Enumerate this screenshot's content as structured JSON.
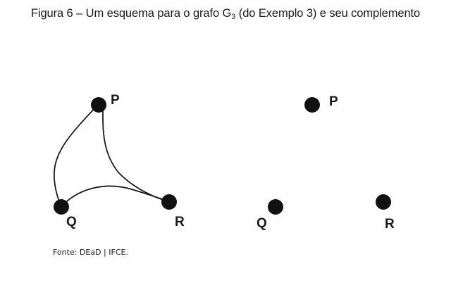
{
  "caption": {
    "prefix": "Figura 6 – Um esquema para o grafo G",
    "subscript": "3",
    "suffix": " (do Exemplo 3) e seu complemento"
  },
  "graph_g3": {
    "vertices": [
      {
        "id": "P",
        "label": "P"
      },
      {
        "id": "Q",
        "label": "Q"
      },
      {
        "id": "R",
        "label": "R"
      }
    ],
    "edges": [
      {
        "from": "P",
        "to": "Q"
      },
      {
        "from": "P",
        "to": "R"
      },
      {
        "from": "Q",
        "to": "R"
      }
    ]
  },
  "graph_complement": {
    "vertices": [
      {
        "id": "P",
        "label": "P"
      },
      {
        "id": "Q",
        "label": "Q"
      },
      {
        "id": "R",
        "label": "R"
      }
    ],
    "edges": []
  },
  "source": "Fonte: DEaD | IFCE.",
  "colors": {
    "vertex": "#111111",
    "edge": "#1a1a1a",
    "text": "#1a1a1a"
  }
}
